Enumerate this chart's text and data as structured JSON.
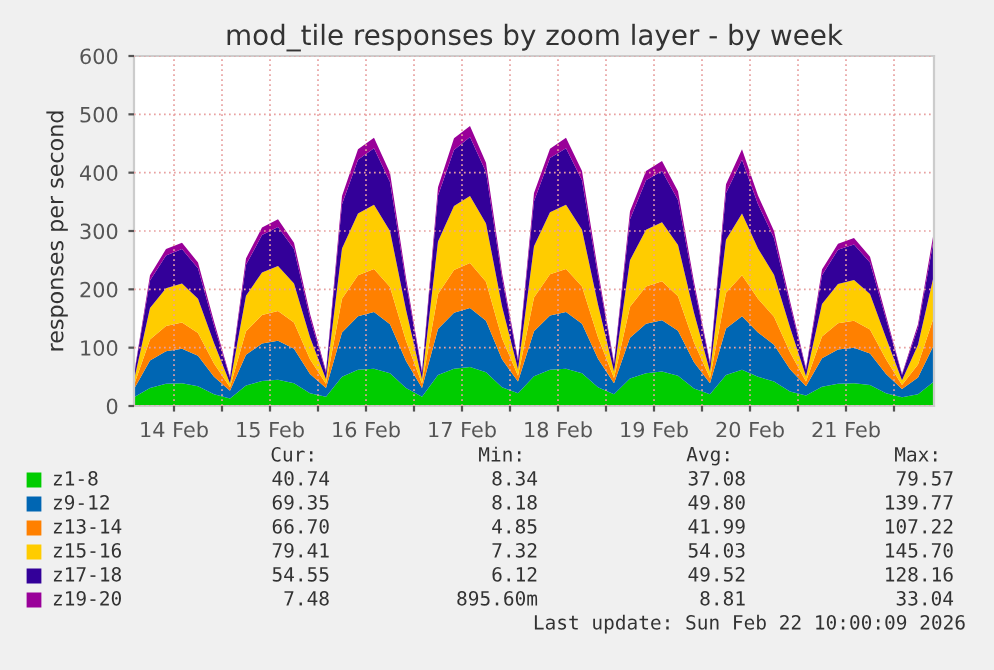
{
  "chart_data": {
    "type": "area",
    "stacked": true,
    "title": "mod_tile responses by zoom layer - by week",
    "ylabel": "responses per second",
    "x": [
      "2026-02-14T02:00",
      "2026-02-14T06:00",
      "2026-02-14T10:00",
      "2026-02-14T14:00",
      "2026-02-14T18:00",
      "2026-02-14T22:00",
      "2026-02-15T02:00",
      "2026-02-15T06:00",
      "2026-02-15T10:00",
      "2026-02-15T14:00",
      "2026-02-15T18:00",
      "2026-02-15T22:00",
      "2026-02-16T02:00",
      "2026-02-16T06:00",
      "2026-02-16T10:00",
      "2026-02-16T14:00",
      "2026-02-16T18:00",
      "2026-02-16T22:00",
      "2026-02-17T02:00",
      "2026-02-17T06:00",
      "2026-02-17T10:00",
      "2026-02-17T14:00",
      "2026-02-17T18:00",
      "2026-02-17T22:00",
      "2026-02-18T02:00",
      "2026-02-18T06:00",
      "2026-02-18T10:00",
      "2026-02-18T14:00",
      "2026-02-18T18:00",
      "2026-02-18T22:00",
      "2026-02-19T02:00",
      "2026-02-19T06:00",
      "2026-02-19T10:00",
      "2026-02-19T14:00",
      "2026-02-19T18:00",
      "2026-02-19T22:00",
      "2026-02-20T02:00",
      "2026-02-20T06:00",
      "2026-02-20T10:00",
      "2026-02-20T14:00",
      "2026-02-20T18:00",
      "2026-02-20T22:00",
      "2026-02-21T02:00",
      "2026-02-21T06:00",
      "2026-02-21T10:00",
      "2026-02-21T14:00",
      "2026-02-21T18:00",
      "2026-02-21T22:00",
      "2026-02-22T02:00",
      "2026-02-22T06:00",
      "2026-02-22T10:00"
    ],
    "xlim": [
      "2026-02-14T02:00",
      "2026-02-22T10:00"
    ],
    "xticks": [
      {
        "value": "2026-02-14T12:00",
        "label": "14 Feb"
      },
      {
        "value": "2026-02-15T12:00",
        "label": "15 Feb"
      },
      {
        "value": "2026-02-16T12:00",
        "label": "16 Feb"
      },
      {
        "value": "2026-02-17T12:00",
        "label": "17 Feb"
      },
      {
        "value": "2026-02-18T12:00",
        "label": "18 Feb"
      },
      {
        "value": "2026-02-19T12:00",
        "label": "19 Feb"
      },
      {
        "value": "2026-02-20T12:00",
        "label": "20 Feb"
      },
      {
        "value": "2026-02-21T12:00",
        "label": "21 Feb"
      },
      {
        "value": "2026-02-15",
        "label": null
      },
      {
        "value": "2026-02-16",
        "label": null
      },
      {
        "value": "2026-02-17",
        "label": null
      },
      {
        "value": "2026-02-18",
        "label": null
      },
      {
        "value": "2026-02-19",
        "label": null
      },
      {
        "value": "2026-02-20",
        "label": null
      },
      {
        "value": "2026-02-21",
        "label": null
      },
      {
        "value": "2026-02-22",
        "label": null
      }
    ],
    "ylim": [
      0,
      600
    ],
    "yticks": [
      0,
      100,
      200,
      300,
      400,
      500,
      600
    ],
    "grid": true,
    "legend": "bottom",
    "series": [
      {
        "name": "z1-8",
        "color": "#00cc00",
        "values": [
          15,
          31,
          38,
          39,
          34,
          20,
          13,
          35,
          43,
          45,
          39,
          22,
          16,
          50,
          62,
          64,
          56,
          31,
          16,
          53,
          64,
          67,
          58,
          32,
          22,
          51,
          62,
          64,
          56,
          32,
          20,
          47,
          56,
          59,
          52,
          30,
          20,
          53,
          62,
          50,
          42,
          25,
          18,
          33,
          38,
          39,
          36,
          22,
          15,
          20,
          42
        ]
      },
      {
        "name": "z9-12",
        "color": "#0066b3",
        "values": [
          14,
          47,
          56,
          59,
          52,
          30,
          13,
          53,
          64,
          67,
          59,
          33,
          15,
          76,
          92,
          97,
          84,
          46,
          15,
          79,
          96,
          101,
          88,
          48,
          20,
          77,
          93,
          97,
          85,
          49,
          19,
          70,
          85,
          88,
          77,
          45,
          19,
          80,
          92,
          76,
          63,
          38,
          16,
          49,
          59,
          61,
          54,
          33,
          14,
          29,
          63
        ]
      },
      {
        "name": "z13-14",
        "color": "#ff8000",
        "values": [
          7,
          36,
          43,
          45,
          39,
          23,
          6,
          40,
          49,
          51,
          45,
          25,
          7,
          58,
          70,
          74,
          64,
          35,
          7,
          60,
          73,
          77,
          67,
          36,
          10,
          58,
          71,
          74,
          64,
          37,
          9,
          53,
          64,
          67,
          59,
          34,
          9,
          61,
          70,
          58,
          48,
          29,
          8,
          37,
          45,
          46,
          41,
          25,
          7,
          22,
          48
        ]
      },
      {
        "name": "z15-16",
        "color": "#ffcc00",
        "values": [
          8,
          54,
          65,
          67,
          59,
          35,
          7,
          61,
          73,
          77,
          67,
          38,
          8,
          86,
          106,
          110,
          96,
          53,
          8,
          90,
          110,
          115,
          100,
          55,
          11,
          88,
          106,
          110,
          97,
          56,
          11,
          80,
          97,
          101,
          88,
          51,
          11,
          91,
          106,
          86,
          72,
          43,
          9,
          56,
          67,
          70,
          61,
          37,
          8,
          34,
          72
        ]
      },
      {
        "name": "z17-18",
        "color": "#330099",
        "values": [
          9,
          47,
          56,
          59,
          52,
          30,
          9,
          53,
          64,
          67,
          59,
          33,
          11,
          76,
          92,
          97,
          84,
          46,
          11,
          79,
          96,
          101,
          88,
          48,
          14,
          77,
          93,
          97,
          85,
          49,
          13,
          70,
          85,
          88,
          77,
          45,
          13,
          80,
          92,
          76,
          63,
          38,
          11,
          49,
          59,
          61,
          54,
          32,
          9,
          29,
          63
        ]
      },
      {
        "name": "z19-20",
        "color": "#990099",
        "values": [
          2,
          9,
          11,
          11,
          10,
          7,
          2,
          11,
          13,
          13,
          11,
          7,
          3,
          14,
          18,
          18,
          16,
          9,
          3,
          14,
          20,
          19,
          16,
          9,
          3,
          14,
          16,
          18,
          16,
          9,
          3,
          14,
          16,
          17,
          15,
          8,
          3,
          15,
          18,
          15,
          12,
          7,
          3,
          10,
          10,
          11,
          10,
          6,
          2,
          6,
          12
        ]
      }
    ],
    "annotations": [
      "Cur:",
      "Min:",
      "Avg:",
      "Max:",
      "40.74",
      "8.34",
      "37.08",
      "79.57",
      "69.35",
      "8.18",
      "49.80",
      "139.77",
      "66.70",
      "4.85",
      "41.99",
      "107.22",
      "79.41",
      "7.32",
      "54.03",
      "145.70",
      "54.55",
      "6.12",
      "49.52",
      "128.16",
      "7.48",
      "895.60m",
      "8.81",
      "33.04",
      "Last update: Sun Feb 22 10:00:09 2026"
    ]
  }
}
